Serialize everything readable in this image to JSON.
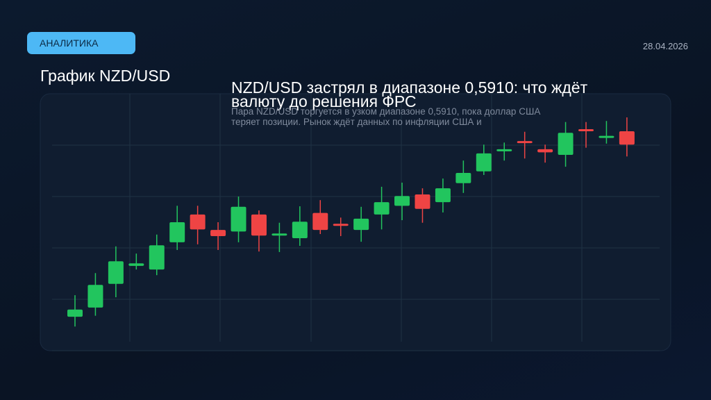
{
  "badge": "АНАЛИТИКА",
  "date": "28.04.2026",
  "chart_title": "График NZD/USD",
  "headline": "NZD/USD застрял в диапазоне 0,5910: что ждёт валюту до решения ФРС",
  "summary": "Пара NZD/USD торгуется в узком диапазоне 0,5910, пока доллар США теряет позиции. Рынок ждёт данных по инфляции США и",
  "chart_data": {
    "type": "candlestick",
    "ylim": [
      0,
      5
    ],
    "yticks": [
      1,
      2,
      3,
      4
    ],
    "grid": true,
    "up_color": "#22c55e",
    "down_color": "#ef4444",
    "series": {
      "open": [
        0.66,
        0.84,
        1.3,
        1.65,
        1.58,
        2.11,
        2.65,
        2.35,
        2.32,
        2.65,
        2.24,
        2.19,
        2.68,
        2.47,
        2.35,
        2.65,
        2.82,
        3.04,
        2.89,
        3.26,
        3.49,
        3.88,
        4.08,
        3.92,
        3.81,
        4.31,
        4.14,
        4.27
      ],
      "high": [
        1.08,
        1.51,
        2.03,
        1.89,
        2.26,
        2.82,
        2.82,
        2.5,
        3.0,
        2.73,
        2.49,
        2.81,
        2.93,
        2.59,
        2.8,
        3.19,
        3.27,
        3.16,
        3.35,
        3.7,
        4.01,
        4.05,
        4.26,
        4.01,
        4.45,
        4.45,
        4.47,
        4.54
      ],
      "low": [
        0.47,
        0.68,
        1.04,
        1.58,
        1.47,
        1.96,
        2.07,
        1.96,
        2.11,
        1.93,
        1.92,
        2.04,
        2.27,
        2.23,
        2.12,
        2.36,
        2.54,
        2.49,
        2.69,
        3.07,
        3.42,
        3.7,
        3.74,
        3.66,
        3.58,
        3.95,
        4.03,
        3.78
      ],
      "close": [
        0.8,
        1.28,
        1.74,
        1.7,
        2.05,
        2.5,
        2.36,
        2.23,
        2.8,
        2.24,
        2.28,
        2.51,
        2.35,
        2.43,
        2.57,
        2.89,
        3.01,
        2.76,
        3.16,
        3.46,
        3.84,
        3.92,
        4.04,
        3.86,
        4.24,
        4.27,
        4.18,
        4.01
      ]
    }
  }
}
